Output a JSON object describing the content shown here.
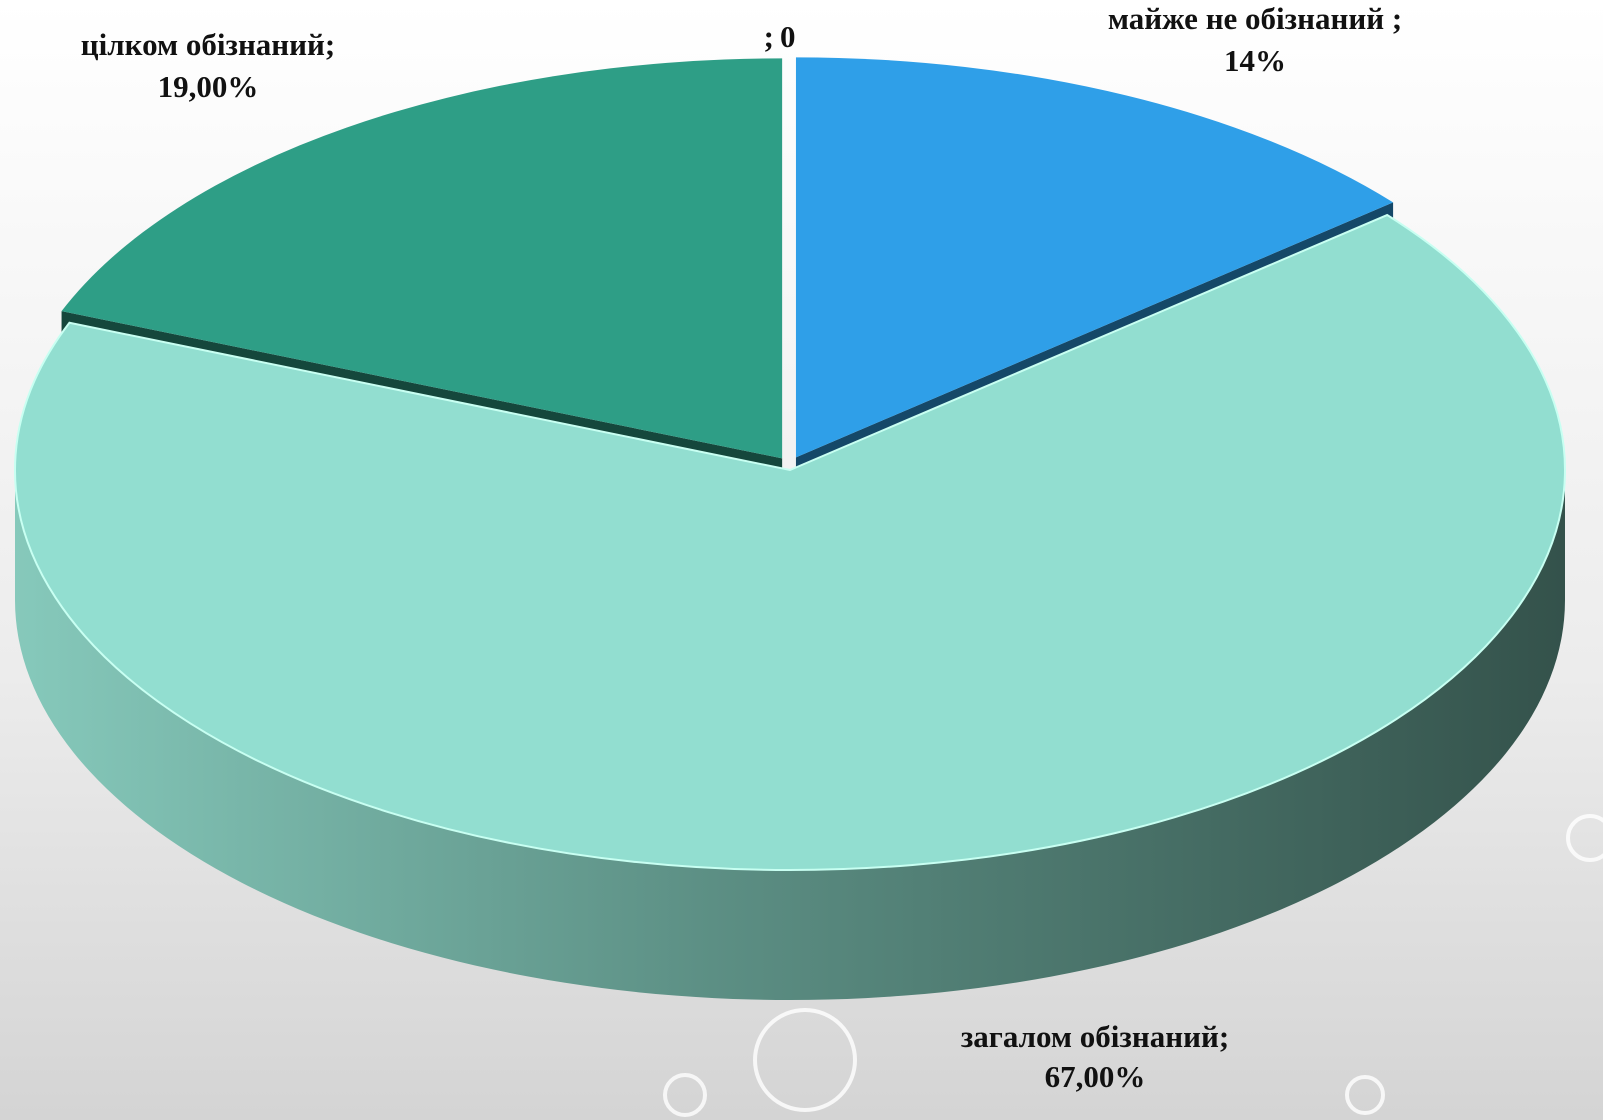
{
  "chart_data": {
    "type": "pie3d",
    "categories": [
      "майже не обізнаний ;",
      "загалом обізнаний;",
      "цілком обізнаний;",
      ";"
    ],
    "values": [
      14,
      67,
      19,
      0
    ],
    "value_labels": [
      "14%",
      "67,00%",
      "19,00%",
      "0"
    ],
    "colors": [
      "#2f9fe8",
      "#92ded0",
      "#2e9e86",
      "#888888"
    ]
  }
}
